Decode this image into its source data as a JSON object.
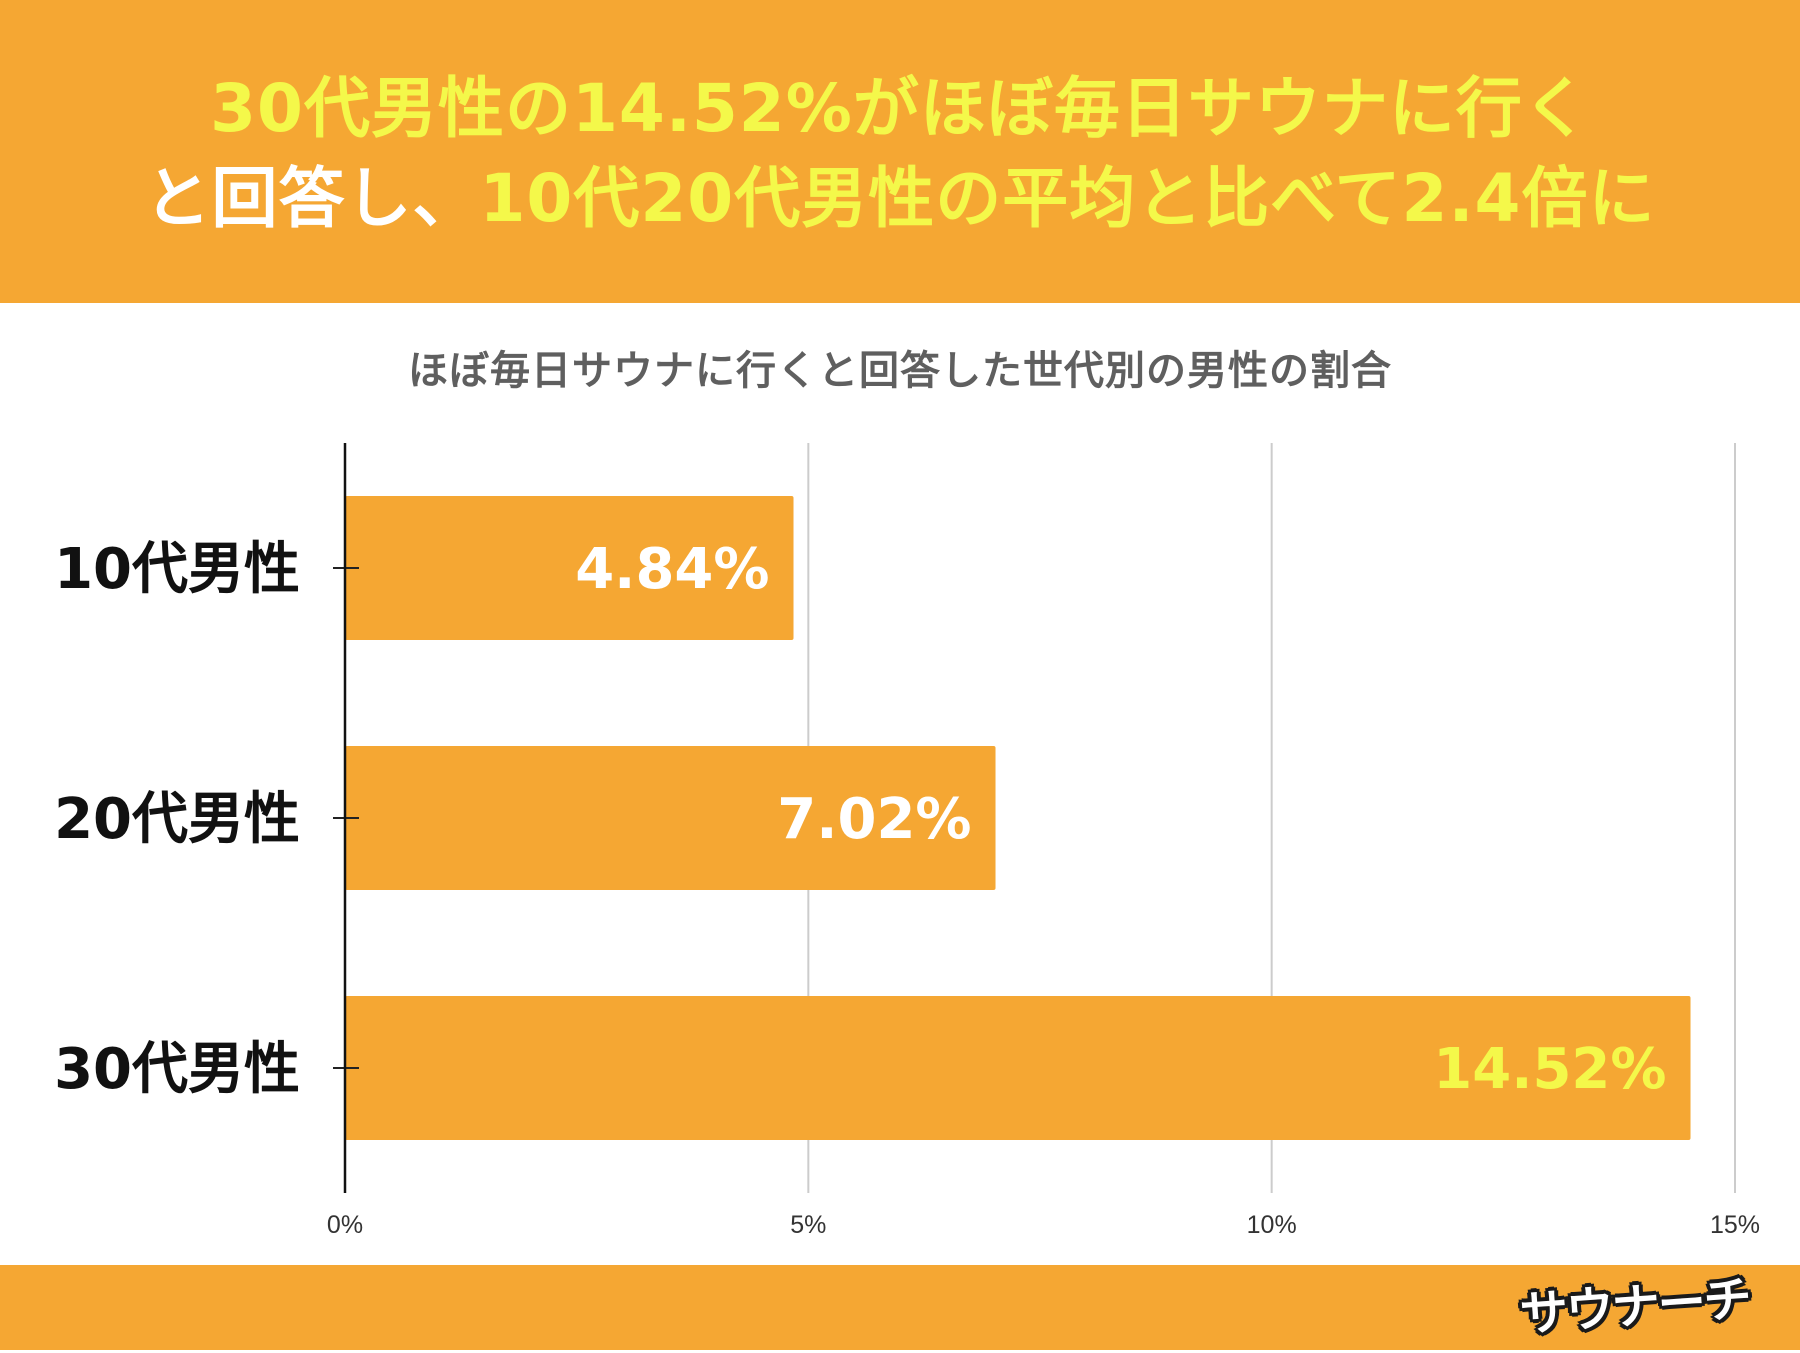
{
  "header": {
    "line1": [
      {
        "text": "30代男性の14.52%がほぼ毎日サウナに行く",
        "color": "yellow"
      }
    ],
    "line2": [
      {
        "text": "と回答し、",
        "color": "white"
      },
      {
        "text": "10代20代男性の平均と比べて2.4倍に",
        "color": "yellow"
      }
    ]
  },
  "colors": {
    "accent": "#f5a733",
    "headline_yellow": "#f4f84a",
    "label_white": "#ffffff",
    "label_yellow": "#f4f84a"
  },
  "chart_data": {
    "type": "bar",
    "orientation": "horizontal",
    "title": "ほぼ毎日サウナに行くと回答した世代別の男性の割合",
    "categories": [
      "10代男性",
      "20代男性",
      "30代男性"
    ],
    "values": [
      4.84,
      7.02,
      14.52
    ],
    "value_labels": [
      "4.84%",
      "7.02%",
      "14.52%"
    ],
    "value_label_colors": [
      "#ffffff",
      "#ffffff",
      "#f4f84a"
    ],
    "xlim": [
      0,
      15
    ],
    "xticks": [
      0,
      5,
      10,
      15
    ],
    "xtick_labels": [
      "0%",
      "5%",
      "10%",
      "15%"
    ],
    "grid": true,
    "bar_color": "#f5a733"
  },
  "logo": {
    "text": "サウナーチ"
  }
}
